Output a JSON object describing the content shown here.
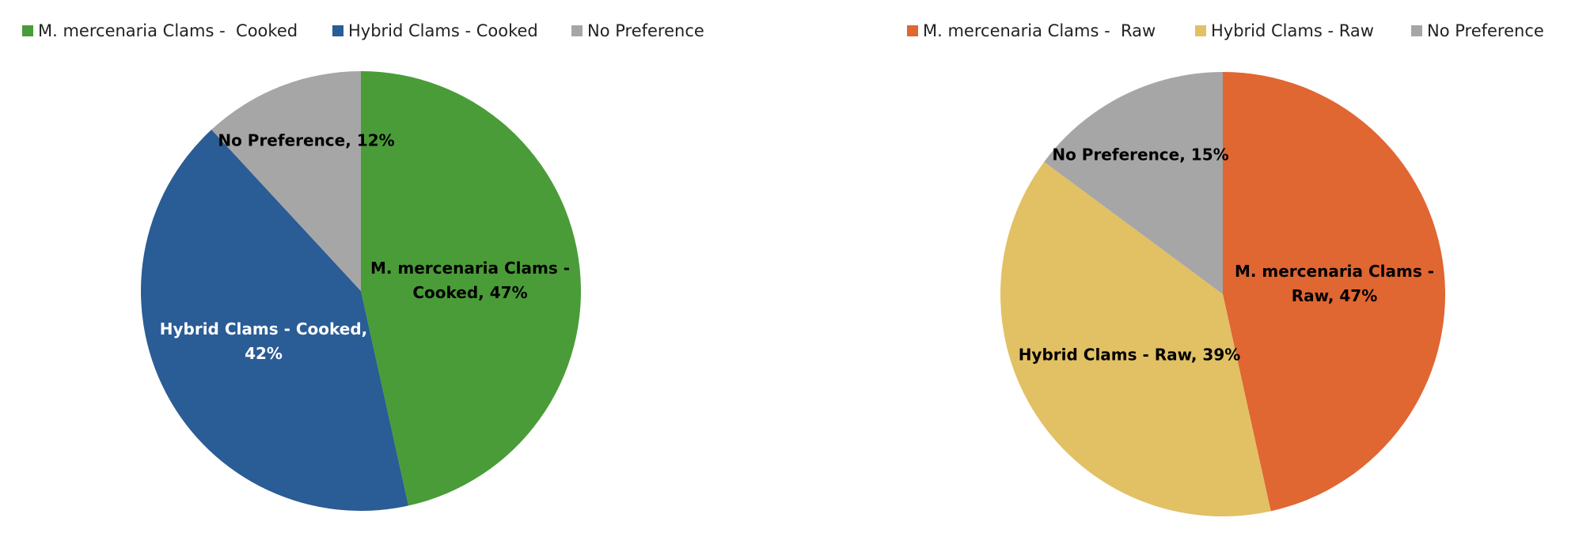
{
  "chart_data": [
    {
      "type": "pie",
      "categories": [
        "M. mercenaria Clams -  Cooked",
        "Hybrid Clams - Cooked",
        "No Preference"
      ],
      "values": [
        47,
        42,
        12
      ],
      "value_labels": [
        "M. mercenaria Clams - Cooked, 47%",
        "Hybrid Clams - Cooked, 42%",
        "No Preference, 12%"
      ],
      "colors": [
        "#4a9c38",
        "#2a5c96",
        "#a6a6a6"
      ]
    },
    {
      "type": "pie",
      "categories": [
        "M. mercenaria Clams -  Raw",
        "Hybrid Clams - Raw",
        "No Preference"
      ],
      "values": [
        47,
        39,
        15
      ],
      "value_labels": [
        "M. mercenaria Clams - Raw, 47%",
        "Hybrid Clams - Raw, 39%",
        "No Preference, 15%"
      ],
      "colors": [
        "#e06632",
        "#e2c064",
        "#a6a6a6"
      ]
    }
  ]
}
